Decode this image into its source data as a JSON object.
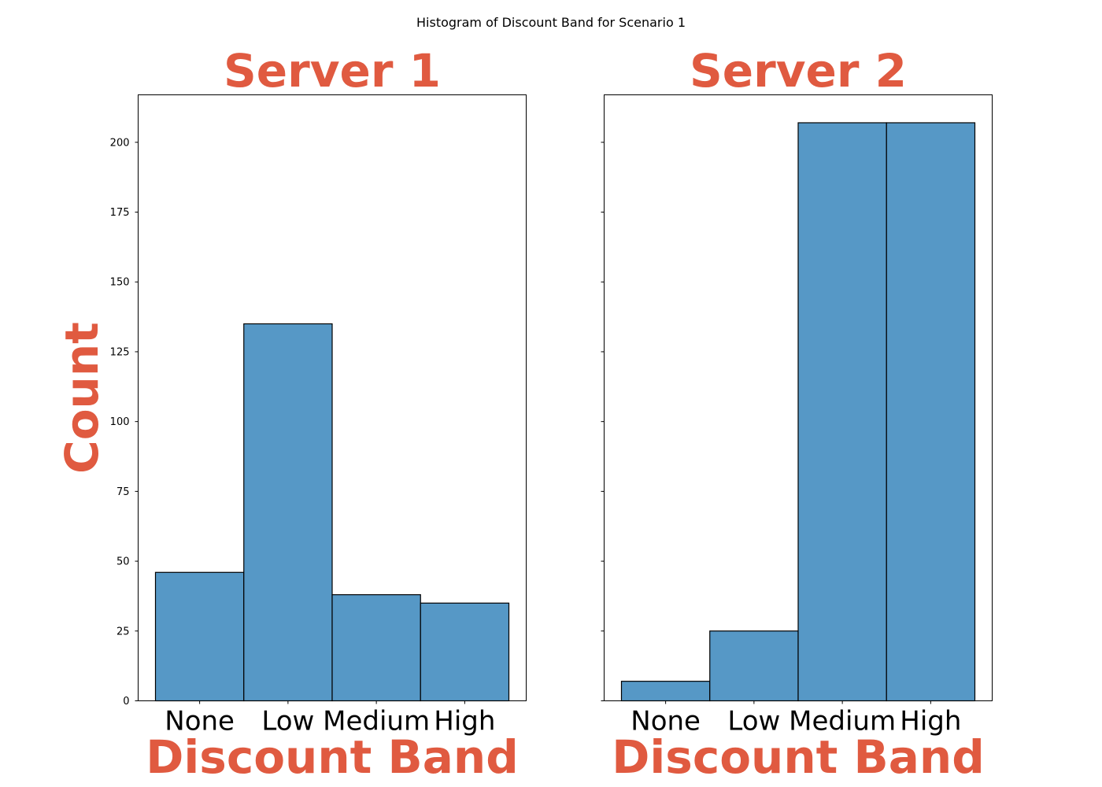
{
  "suptitle": "Histogram of Discount Band for Scenario 1",
  "accent_color": "#e05a40",
  "bar_color": "#5698c6",
  "chart_data": [
    {
      "type": "bar",
      "title": "Server 1",
      "xlabel": "Discount Band",
      "ylabel": "Count",
      "categories": [
        "None",
        "Low",
        "Medium",
        "High"
      ],
      "values": [
        46,
        135,
        38,
        35
      ],
      "ylim": [
        0,
        217
      ],
      "yticks": [
        0,
        25,
        50,
        75,
        100,
        125,
        150,
        175,
        200
      ],
      "show_ytick_labels": true,
      "grid": false
    },
    {
      "type": "bar",
      "title": "Server 2",
      "xlabel": "Discount Band",
      "ylabel": "",
      "categories": [
        "None",
        "Low",
        "Medium",
        "High"
      ],
      "values": [
        7,
        25,
        207,
        207
      ],
      "ylim": [
        0,
        217
      ],
      "yticks": [
        0,
        25,
        50,
        75,
        100,
        125,
        150,
        175,
        200
      ],
      "show_ytick_labels": false,
      "grid": false
    }
  ]
}
